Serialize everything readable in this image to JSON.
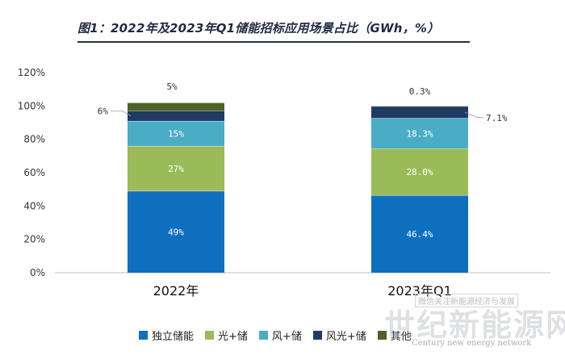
{
  "chart_data": {
    "type": "bar",
    "stacked": true,
    "title": "图1：2022年及2023年Q1储能招标应用场景占比（GWh，%）",
    "categories": [
      "2022年",
      "2023年Q1"
    ],
    "ylim": [
      0,
      120
    ],
    "yticks": [
      "0%",
      "20%",
      "40%",
      "60%",
      "80%",
      "100%",
      "120%"
    ],
    "grid": false,
    "legend_position": "bottom",
    "series": [
      {
        "name": "独立储能",
        "color": "#0f6fbf",
        "values": [
          49,
          46.4
        ],
        "labels": [
          "49%",
          "46.4%"
        ]
      },
      {
        "name": "光+储",
        "color": "#9bbb59",
        "values": [
          27,
          28.0
        ],
        "labels": [
          "27%",
          "28.0%"
        ]
      },
      {
        "name": "风+储",
        "color": "#4bacc6",
        "values": [
          15,
          18.3
        ],
        "labels": [
          "15%",
          "18.3%"
        ]
      },
      {
        "name": "风光+储",
        "color": "#1f3b64",
        "values": [
          6,
          7.1
        ],
        "labels": [
          "6%",
          "7.1%"
        ]
      },
      {
        "name": "其他",
        "color": "#4f6228",
        "values": [
          5,
          0.3
        ],
        "labels": [
          "5%",
          "0.3%"
        ]
      }
    ]
  },
  "watermark": {
    "small": "微信关注新能源经济与发展",
    "main": "世纪新能源网",
    "sub": "Century new energy network"
  }
}
